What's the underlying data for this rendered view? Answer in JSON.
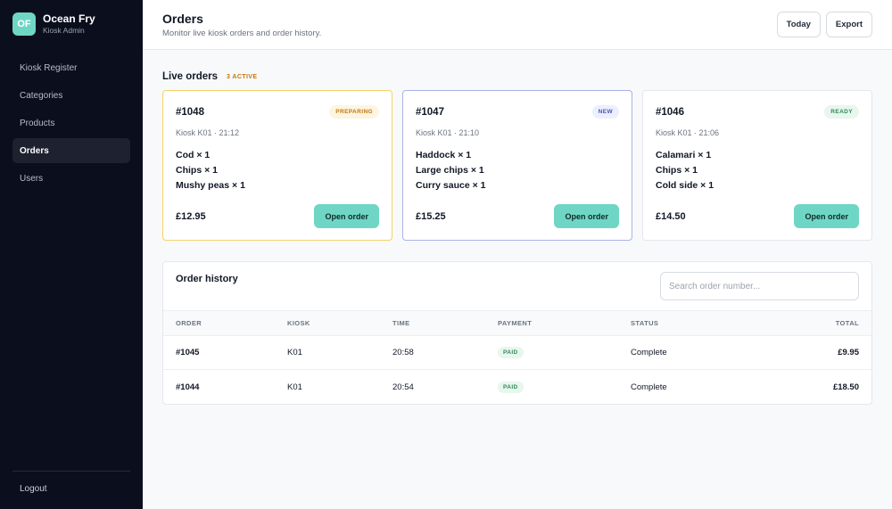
{
  "brand": {
    "initials": "OF",
    "name": "Ocean Fry",
    "subtitle": "Kiosk Admin",
    "accent": "#6fd6c5"
  },
  "sidebar": {
    "items": [
      {
        "label": "Kiosk Register",
        "active": false
      },
      {
        "label": "Categories",
        "active": false
      },
      {
        "label": "Products",
        "active": false
      },
      {
        "label": "Orders",
        "active": true
      },
      {
        "label": "Users",
        "active": false
      }
    ],
    "logout_label": "Logout"
  },
  "header": {
    "title": "Orders",
    "subtitle": "Monitor live kiosk orders and order history.",
    "today_label": "Today",
    "export_label": "Export"
  },
  "live": {
    "title": "Live orders",
    "badge": "3 ACTIVE",
    "cards": [
      {
        "number": "#1048",
        "status": "PREPARING",
        "meta": "Kiosk K01 · 21:12",
        "items": [
          "Cod × 1",
          "Chips × 1",
          "Mushy peas × 1"
        ],
        "total": "£12.95",
        "button": "Open order"
      },
      {
        "number": "#1047",
        "status": "NEW",
        "meta": "Kiosk K01 · 21:10",
        "items": [
          "Haddock × 1",
          "Large chips × 1",
          "Curry sauce × 1"
        ],
        "total": "£15.25",
        "button": "Open order"
      },
      {
        "number": "#1046",
        "status": "READY",
        "meta": "Kiosk K01 · 21:06",
        "items": [
          "Calamari × 1",
          "Chips × 1",
          "Cold side × 1"
        ],
        "total": "£14.50",
        "button": "Open order"
      }
    ]
  },
  "history": {
    "title": "Order history",
    "search_placeholder": "Search order number...",
    "columns": [
      "ORDER",
      "KIOSK",
      "TIME",
      "PAYMENT",
      "STATUS",
      "TOTAL"
    ],
    "rows": [
      {
        "order": "#1045",
        "kiosk": "K01",
        "time": "20:58",
        "payment": "PAID",
        "status": "Complete",
        "total": "£9.95"
      },
      {
        "order": "#1044",
        "kiosk": "K01",
        "time": "20:54",
        "payment": "PAID",
        "status": "Complete",
        "total": "£18.50"
      }
    ]
  }
}
